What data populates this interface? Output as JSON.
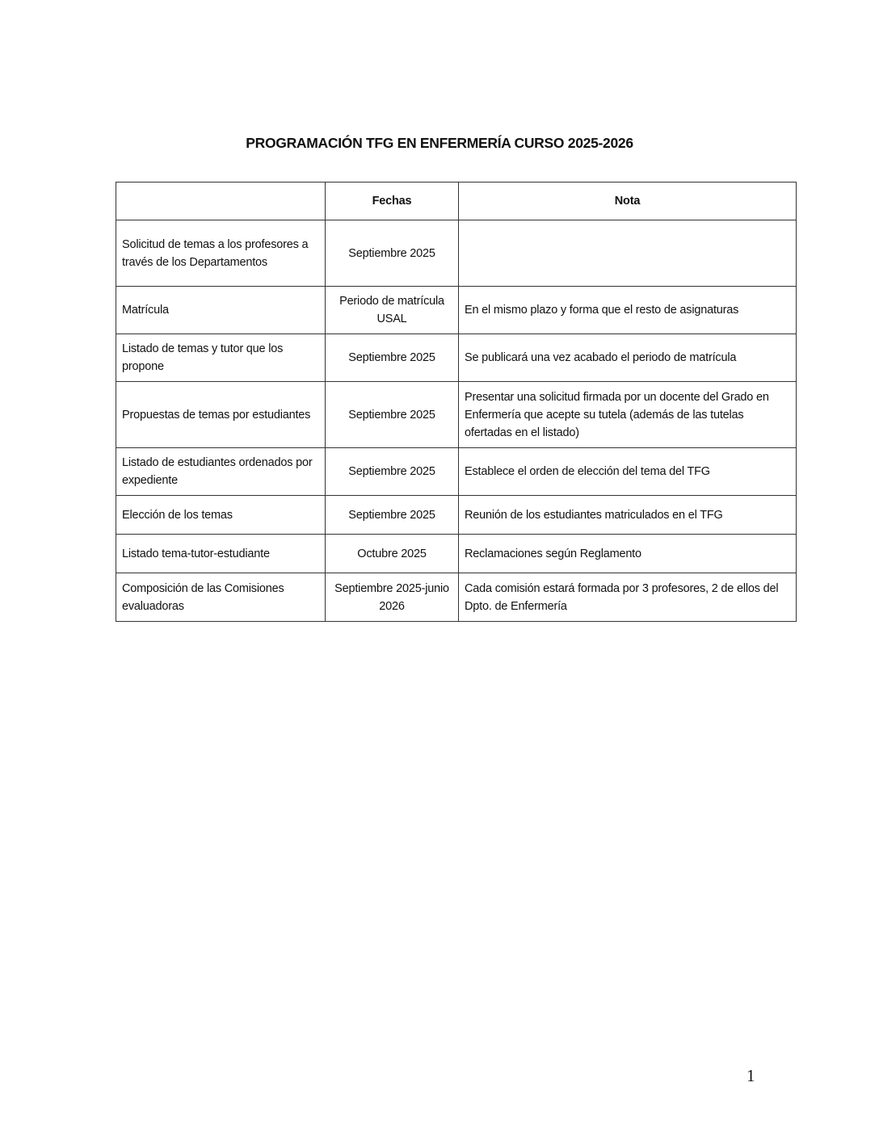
{
  "title": "PROGRAMACIÓN TFG EN ENFERMERÍA CURSO 2025-2026",
  "table": {
    "headers": [
      "",
      "Fechas",
      "Nota"
    ],
    "rows": [
      {
        "activity": "Solicitud de temas a los profesores a través de los Departamentos",
        "fechas": "Septiembre 2025",
        "nota": ""
      },
      {
        "activity": "Matrícula",
        "fechas": "Periodo de matrícula USAL",
        "nota": "En el mismo plazo y forma que el resto de asignaturas"
      },
      {
        "activity": "Listado de temas y tutor que los propone",
        "fechas": "Septiembre 2025",
        "nota": "Se publicará una vez acabado el periodo de matrícula"
      },
      {
        "activity": "Propuestas de temas por estudiantes",
        "fechas": "Septiembre 2025",
        "nota": "Presentar una solicitud firmada por un docente del Grado en Enfermería que acepte su tutela (además de las tutelas ofertadas en el listado)"
      },
      {
        "activity": "Listado de estudiantes ordenados por expediente",
        "fechas": "Septiembre 2025",
        "nota": "Establece el orden de elección del tema del TFG"
      },
      {
        "activity": "Elección de los temas",
        "fechas": "Septiembre 2025",
        "nota": "Reunión de los estudiantes matriculados en el TFG"
      },
      {
        "activity": "Listado tema-tutor-estudiante",
        "fechas": "Octubre 2025",
        "nota": "Reclamaciones según Reglamento"
      },
      {
        "activity": "Composición de las Comisiones evaluadoras",
        "fechas": "Septiembre 2025-junio 2026",
        "nota": "Cada comisión estará formada por 3 profesores, 2 de ellos del Dpto. de Enfermería"
      }
    ]
  },
  "page_number": "1"
}
